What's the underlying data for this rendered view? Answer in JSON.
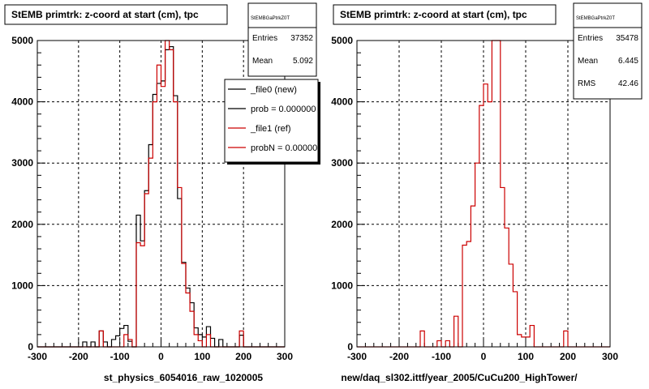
{
  "pads": [
    {
      "title": "StEMB primtrk: z-coord at start (cm), tpc",
      "xlabel": "st_physics_6054016_raw_1020005",
      "stats": {
        "name": "StEMBGaPtrkZ0T",
        "rows": [
          {
            "key": "Entries",
            "value": "37352"
          },
          {
            "key": "Mean",
            "value": "5.092"
          }
        ]
      },
      "legend": [
        {
          "label": "_file0 (new)",
          "color": "#000000"
        },
        {
          "label": "prob = 0.000000",
          "color": "#000000"
        },
        {
          "label": "_file1 (ref)",
          "color": "#cc0000"
        },
        {
          "label": "probN = 0.000000",
          "color": "#cc0000"
        }
      ]
    },
    {
      "title": "StEMB primtrk: z-coord at start (cm), tpc",
      "xlabel": "new/daq_sl302.ittf/year_2005/CuCu200_HighTower/",
      "stats": {
        "name": "StEMBGaPtrkZ0T",
        "rows": [
          {
            "key": "Entries",
            "value": "35478"
          },
          {
            "key": "Mean",
            "value": "6.445"
          },
          {
            "key": "RMS",
            "value": "42.46"
          }
        ]
      },
      "legend": []
    }
  ],
  "chart_data": [
    {
      "type": "histogram",
      "title": "StEMB primtrk: z-coord at start (cm), tpc",
      "xlabel": "st_physics_6054016_raw_1020005",
      "xlim": [
        -300,
        300
      ],
      "ylim": [
        0,
        5000
      ],
      "xticks": [
        -300,
        -200,
        -100,
        0,
        100,
        200,
        300
      ],
      "yticks": [
        0,
        1000,
        2000,
        3000,
        4000,
        5000
      ],
      "grid": true,
      "legend_placement": "top-right",
      "bin_edges": [
        -300,
        -290,
        -280,
        -270,
        -260,
        -250,
        -240,
        -230,
        -220,
        -210,
        -200,
        -190,
        -180,
        -170,
        -160,
        -150,
        -140,
        -130,
        -120,
        -110,
        -100,
        -90,
        -80,
        -70,
        -60,
        -50,
        -40,
        -30,
        -20,
        -10,
        0,
        10,
        20,
        30,
        40,
        50,
        60,
        70,
        80,
        90,
        100,
        110,
        120,
        130,
        140,
        150,
        160,
        170,
        180,
        190,
        200,
        210,
        220,
        230,
        240,
        250,
        260,
        270,
        280,
        290,
        300
      ],
      "series": [
        {
          "name": "_file0 (new)",
          "color": "#000000",
          "values": [
            0,
            0,
            0,
            0,
            0,
            0,
            0,
            0,
            0,
            0,
            0,
            80,
            0,
            80,
            0,
            260,
            80,
            0,
            120,
            180,
            300,
            350,
            90,
            0,
            2150,
            1730,
            2550,
            3300,
            4120,
            4300,
            4340,
            4850,
            4900,
            4100,
            2420,
            1380,
            960,
            720,
            310,
            200,
            160,
            330,
            140,
            0,
            120,
            0,
            0,
            0,
            0,
            190,
            0,
            0,
            0,
            0,
            0,
            0,
            0,
            0,
            0,
            0
          ]
        },
        {
          "name": "_file1 (ref)",
          "color": "#cc0000",
          "values": [
            0,
            0,
            0,
            0,
            0,
            0,
            0,
            0,
            0,
            0,
            0,
            0,
            0,
            0,
            0,
            260,
            0,
            0,
            0,
            0,
            0,
            200,
            120,
            0,
            1700,
            1650,
            2500,
            3080,
            4000,
            4600,
            4250,
            5000,
            4850,
            4000,
            2600,
            1360,
            880,
            580,
            200,
            100,
            0,
            200,
            0,
            0,
            0,
            0,
            0,
            0,
            0,
            260,
            0,
            0,
            0,
            0,
            0,
            0,
            0,
            0,
            0,
            0
          ]
        }
      ]
    },
    {
      "type": "histogram",
      "title": "StEMB primtrk: z-coord at start (cm), tpc",
      "xlabel": "new/daq_sl302.ittf/year_2005/CuCu200_HighTower/",
      "xlim": [
        -300,
        300
      ],
      "ylim": [
        0,
        5000
      ],
      "xticks": [
        -300,
        -200,
        -100,
        0,
        100,
        200,
        300
      ],
      "yticks": [
        0,
        1000,
        2000,
        3000,
        4000,
        5000
      ],
      "grid": true,
      "bin_edges": [
        -300,
        -290,
        -280,
        -270,
        -260,
        -250,
        -240,
        -230,
        -220,
        -210,
        -200,
        -190,
        -180,
        -170,
        -160,
        -150,
        -140,
        -130,
        -120,
        -110,
        -100,
        -90,
        -80,
        -70,
        -60,
        -50,
        -40,
        -30,
        -20,
        -10,
        0,
        10,
        20,
        30,
        40,
        50,
        60,
        70,
        80,
        90,
        100,
        110,
        120,
        130,
        140,
        150,
        160,
        170,
        180,
        190,
        200,
        210,
        220,
        230,
        240,
        250,
        260,
        270,
        280,
        290,
        300
      ],
      "series": [
        {
          "color": "#cc0000",
          "values": [
            0,
            0,
            0,
            0,
            0,
            0,
            0,
            0,
            0,
            0,
            0,
            0,
            0,
            0,
            0,
            260,
            0,
            0,
            0,
            100,
            0,
            100,
            0,
            500,
            0,
            1660,
            1720,
            2300,
            3000,
            3940,
            4290,
            4000,
            5000,
            5000,
            2600,
            1940,
            1350,
            900,
            200,
            160,
            160,
            350,
            0,
            0,
            0,
            0,
            0,
            0,
            0,
            260,
            0,
            0,
            0,
            0,
            0,
            0,
            0,
            0,
            0,
            0
          ]
        }
      ]
    }
  ]
}
